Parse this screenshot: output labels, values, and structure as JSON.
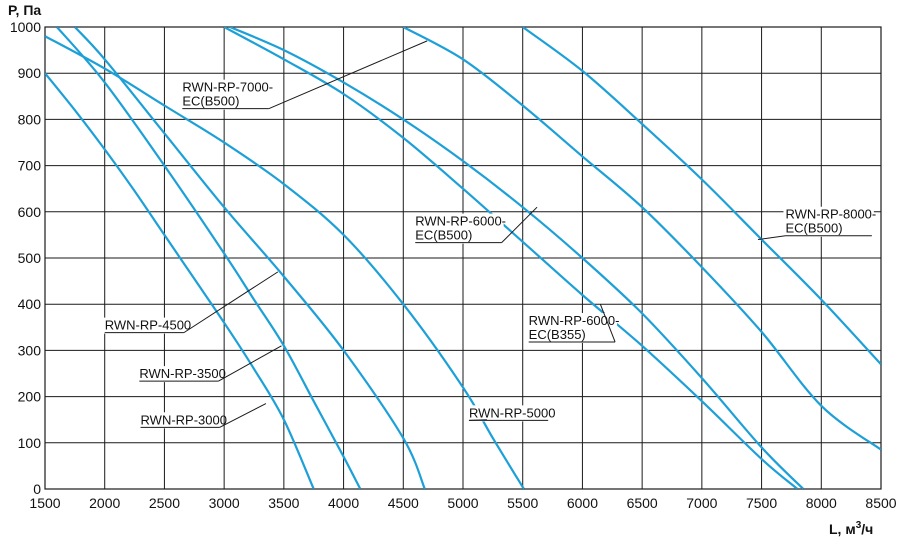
{
  "chart_data": {
    "type": "line",
    "ylabel": "P, Па",
    "xlabel": "L, м",
    "xlabel_sup": "3",
    "xlabel_suffix": "/ч",
    "xlim": [
      1500,
      8500
    ],
    "ylim": [
      0,
      1000
    ],
    "x_ticks": [
      "1500",
      "2000",
      "2500",
      "3000",
      "3500",
      "4000",
      "4500",
      "5000",
      "5500",
      "6000",
      "6500",
      "7000",
      "7500",
      "8000",
      "8500"
    ],
    "y_ticks": [
      "0",
      "100",
      "200",
      "300",
      "400",
      "500",
      "600",
      "700",
      "800",
      "900",
      "1000"
    ],
    "grid": true,
    "line_color": "#1da0d8",
    "series": [
      {
        "name": "RWN-RP-3000",
        "label": [
          "RWN-RP-3000"
        ],
        "label_pos": [
          2300,
          140
        ],
        "leader_to": [
          3350,
          185
        ],
        "points": [
          [
            1500,
            900
          ],
          [
            1750,
            820
          ],
          [
            2000,
            735
          ],
          [
            2250,
            645
          ],
          [
            2500,
            550
          ],
          [
            2750,
            455
          ],
          [
            3000,
            360
          ],
          [
            3250,
            260
          ],
          [
            3500,
            150
          ],
          [
            3750,
            0
          ]
        ]
      },
      {
        "name": "RWN-RP-3500",
        "label": [
          "RWN-RP-3500"
        ],
        "label_pos": [
          2290,
          240
        ],
        "leader_to": [
          3480,
          310
        ],
        "points": [
          [
            1600,
            1000
          ],
          [
            2000,
            880
          ],
          [
            2500,
            700
          ],
          [
            3000,
            510
          ],
          [
            3250,
            410
          ],
          [
            3500,
            310
          ],
          [
            3750,
            190
          ],
          [
            4000,
            70
          ],
          [
            4140,
            0
          ]
        ]
      },
      {
        "name": "RWN-RP-4500",
        "label": [
          "RWN-RP-4500"
        ],
        "label_pos": [
          2000,
          345
        ],
        "leader_to": [
          3450,
          470
        ],
        "points": [
          [
            1750,
            1000
          ],
          [
            2000,
            930
          ],
          [
            2500,
            770
          ],
          [
            3000,
            610
          ],
          [
            3500,
            460
          ],
          [
            4000,
            300
          ],
          [
            4500,
            110
          ],
          [
            4680,
            0
          ]
        ]
      },
      {
        "name": "RWN-RP-5000",
        "label": [
          "RWN-RP-5000"
        ],
        "label_pos": [
          5050,
          155
        ],
        "leader_to": [
          5200,
          150
        ],
        "points": [
          [
            1500,
            980
          ],
          [
            2000,
            910
          ],
          [
            2500,
            830
          ],
          [
            3000,
            750
          ],
          [
            3500,
            660
          ],
          [
            4000,
            550
          ],
          [
            4500,
            400
          ],
          [
            5000,
            220
          ],
          [
            5250,
            110
          ],
          [
            5510,
            0
          ]
        ]
      },
      {
        "name": "RWN-RP-6000-EC(B355)",
        "label": [
          "RWN-RP-6000-",
          "EC(B355)"
        ],
        "label_pos": [
          5550,
          355
        ],
        "leader_to": [
          6150,
          400
        ],
        "points": [
          [
            3000,
            1000
          ],
          [
            3500,
            930
          ],
          [
            4000,
            855
          ],
          [
            4500,
            760
          ],
          [
            5000,
            650
          ],
          [
            5500,
            535
          ],
          [
            6000,
            420
          ],
          [
            6500,
            310
          ],
          [
            7000,
            190
          ],
          [
            7500,
            65
          ],
          [
            7800,
            0
          ]
        ]
      },
      {
        "name": "RWN-RP-6000-EC(B500)",
        "label": [
          "RWN-RP-6000-",
          "EC(B500)"
        ],
        "label_pos": [
          4600,
          570
        ],
        "leader_to": [
          5620,
          610
        ],
        "points": [
          [
            3050,
            1000
          ],
          [
            3500,
            950
          ],
          [
            4000,
            880
          ],
          [
            4500,
            800
          ],
          [
            5000,
            710
          ],
          [
            5500,
            610
          ],
          [
            6000,
            500
          ],
          [
            6500,
            380
          ],
          [
            7000,
            240
          ],
          [
            7500,
            90
          ],
          [
            7850,
            0
          ]
        ]
      },
      {
        "name": "RWN-RP-7000-EC(B500)",
        "label": [
          "RWN-RP-7000-",
          "EC(B500)"
        ],
        "label_pos": [
          2650,
          860
        ],
        "leader_to": [
          4700,
          970
        ],
        "points": [
          [
            4500,
            1000
          ],
          [
            5000,
            930
          ],
          [
            5500,
            830
          ],
          [
            6000,
            720
          ],
          [
            6500,
            610
          ],
          [
            7000,
            480
          ],
          [
            7500,
            340
          ],
          [
            8000,
            180
          ],
          [
            8500,
            85
          ]
        ]
      },
      {
        "name": "RWN-RP-8000-EC(B500)",
        "label": [
          "RWN-RP-8000-",
          "EC(B500)"
        ],
        "label_pos": [
          7700,
          585
        ],
        "leader_to": [
          7470,
          540
        ],
        "points": [
          [
            5500,
            1000
          ],
          [
            6000,
            905
          ],
          [
            6500,
            790
          ],
          [
            7000,
            670
          ],
          [
            7500,
            540
          ],
          [
            8000,
            410
          ],
          [
            8500,
            270
          ]
        ]
      }
    ]
  }
}
